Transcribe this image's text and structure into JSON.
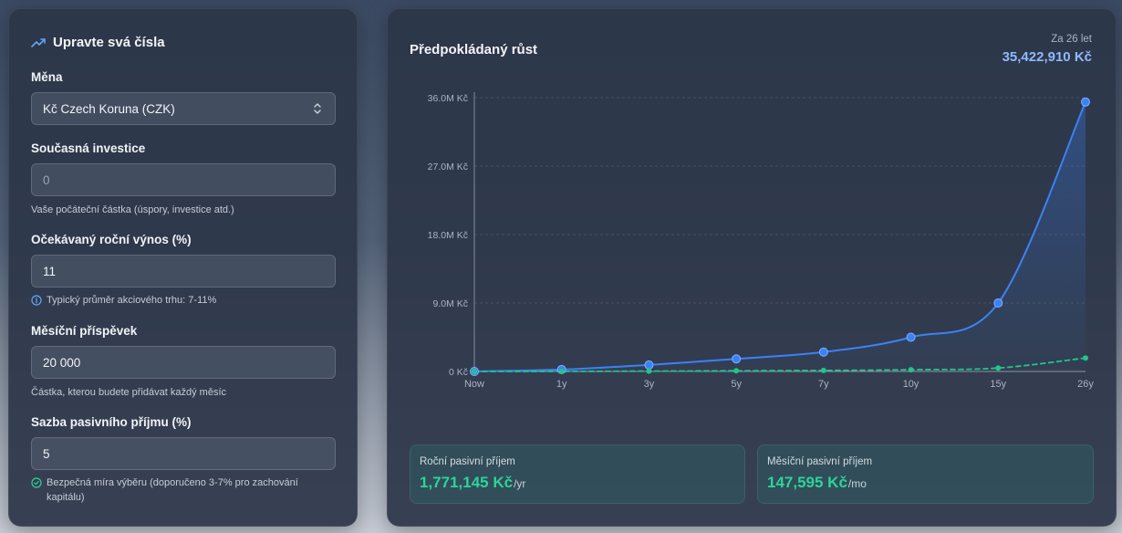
{
  "form": {
    "title": "Upravte svá čísla",
    "currency": {
      "label": "Měna",
      "value": "Kč Czech Koruna (CZK)"
    },
    "investment": {
      "label": "Současná investice",
      "value": "0",
      "hint": "Vaše počáteční částka (úspory, investice atd.)"
    },
    "return_rate": {
      "label": "Očekávaný roční výnos (%)",
      "value": "11",
      "hint": "Typický průměr akciového trhu: 7-11%"
    },
    "contribution": {
      "label": "Měsíční příspěvek",
      "value": "20 000",
      "hint": "Částka, kterou budete přidávat každý měsíc"
    },
    "passive_rate": {
      "label": "Sazba pasivního příjmu (%)",
      "value": "5",
      "hint": "Bezpečná míra výběru (doporučeno 3-7% pro zachování kapitálu)"
    }
  },
  "growth": {
    "title": "Předpokládaný růst",
    "period": "Za 26 let",
    "total": "35,422,910 Kč"
  },
  "chart_data": {
    "type": "line",
    "categories": [
      "Now",
      "1y",
      "3y",
      "5y",
      "7y",
      "10y",
      "15y",
      "26y"
    ],
    "y_tick_labels": [
      "0 Kč",
      "9.0M Kč",
      "18.0M Kč",
      "27.0M Kč",
      "36.0M Kč"
    ],
    "y_ticks": [
      0,
      9000000,
      18000000,
      27000000,
      36000000
    ],
    "ylim": [
      0,
      36000000
    ],
    "grid": true,
    "series": [
      {
        "values": [
          0,
          250000,
          850000,
          1650000,
          2550000,
          4500000,
          9000000,
          35422910
        ],
        "color": "#3b82f6",
        "style": "solid",
        "fill": true
      },
      {
        "values": [
          0,
          12000,
          45000,
          85000,
          130000,
          230000,
          450000,
          1771145
        ],
        "color": "#22c58b",
        "style": "dashed",
        "fill": false
      }
    ]
  },
  "income": {
    "annual": {
      "label": "Roční pasivní příjem",
      "value": "1,771,145 Kč",
      "unit": "/yr"
    },
    "monthly": {
      "label": "Měsíční pasivní příjem",
      "value": "147,595 Kč",
      "unit": "/mo"
    }
  },
  "colors": {
    "accent": "#3b82f6",
    "income": "#2ed39a",
    "total": "#8fb9ff"
  },
  "icons": {
    "title": "trending-up-icon",
    "select": "chevron-up-down-icon",
    "info": "info-icon",
    "safe": "check-circle-icon"
  }
}
